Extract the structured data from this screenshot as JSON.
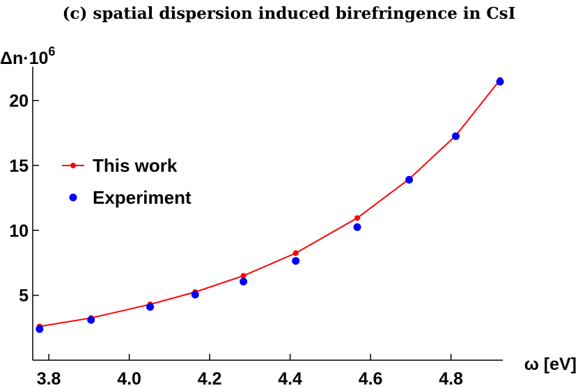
{
  "chart_data": {
    "type": "line",
    "title": "(c) spatial dispersion induced birefringence in CsI",
    "xlabel": "ω [eV]",
    "ylabel": "Δn·10",
    "ylabel_sup": "6",
    "xlim": [
      3.76,
      4.96
    ],
    "ylim": [
      0,
      22.6
    ],
    "xticks": [
      3.8,
      4.0,
      4.2,
      4.4,
      4.6,
      4.8
    ],
    "xtick_labels": [
      "3.8",
      "4.0",
      "4.2",
      "4.4",
      "4.6",
      "4.8"
    ],
    "yticks": [
      5,
      10,
      15,
      20
    ],
    "ytick_labels": [
      "5",
      "10",
      "15",
      "20"
    ],
    "legend_position": "left",
    "series": [
      {
        "name": "This work",
        "color": "#ff0000",
        "style": "line-with-markers",
        "points": [
          {
            "x": 3.777,
            "y": 2.6
          },
          {
            "x": 3.905,
            "y": 3.25
          },
          {
            "x": 4.052,
            "y": 4.3
          },
          {
            "x": 4.164,
            "y": 5.25
          },
          {
            "x": 4.284,
            "y": 6.5
          },
          {
            "x": 4.414,
            "y": 8.25
          },
          {
            "x": 4.567,
            "y": 10.95
          },
          {
            "x": 4.696,
            "y": 13.95
          },
          {
            "x": 4.812,
            "y": 17.3
          },
          {
            "x": 4.922,
            "y": 21.6
          }
        ]
      },
      {
        "name": "Experiment",
        "color": "#0000ff",
        "style": "markers",
        "points": [
          {
            "x": 3.777,
            "y": 2.4
          },
          {
            "x": 3.905,
            "y": 3.1
          },
          {
            "x": 4.052,
            "y": 4.1
          },
          {
            "x": 4.164,
            "y": 5.05
          },
          {
            "x": 4.284,
            "y": 6.05
          },
          {
            "x": 4.414,
            "y": 7.65
          },
          {
            "x": 4.567,
            "y": 10.25
          },
          {
            "x": 4.696,
            "y": 13.9
          },
          {
            "x": 4.812,
            "y": 17.25
          },
          {
            "x": 4.922,
            "y": 21.45
          }
        ]
      }
    ]
  }
}
